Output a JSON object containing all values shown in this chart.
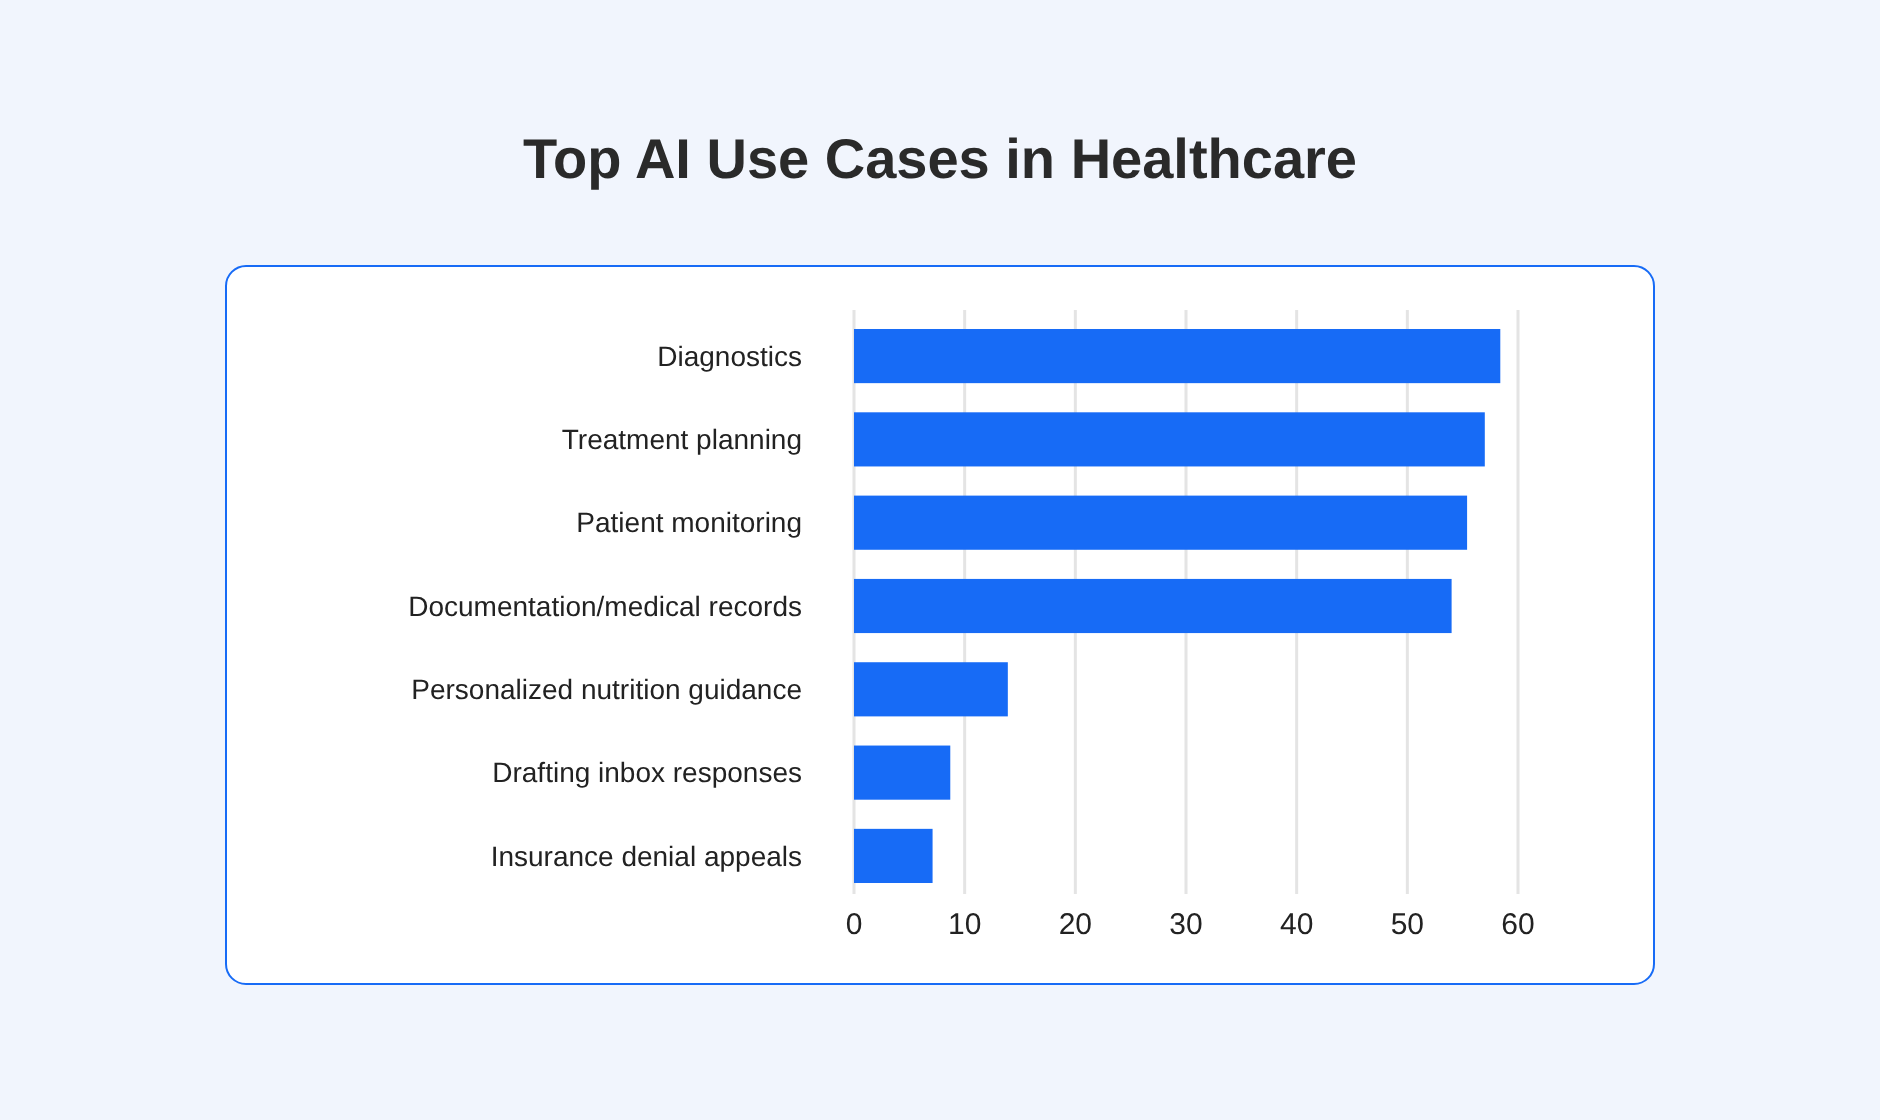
{
  "chart_data": {
    "type": "bar",
    "orientation": "horizontal",
    "title": "Top AI Use Cases in Healthcare",
    "categories": [
      "Diagnostics",
      "Treatment planning",
      "Patient monitoring",
      "Documentation/medical records",
      "Personalized nutrition guidance",
      "Drafting inbox responses",
      "Insurance denial appeals"
    ],
    "values": [
      58.4,
      57,
      55.4,
      54,
      13.9,
      8.7,
      7.1
    ],
    "color": "#176bf6",
    "xlim": [
      0,
      60
    ],
    "xticks": [
      0,
      10,
      20,
      30,
      40,
      50,
      60
    ],
    "grid": "x"
  }
}
